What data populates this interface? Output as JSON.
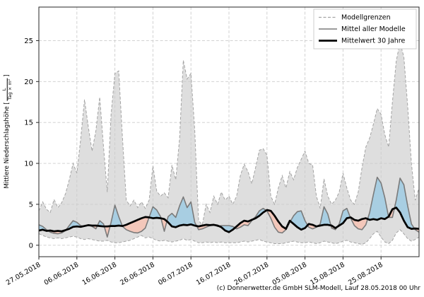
{
  "caption": "(c) Donnerwetter.de GmbH SLM-Modell, Lauf 28.05.2018 00 Uhr",
  "y_axis_label": {
    "prefix": "Mittlere Niederschlagshöhe [",
    "fraction_numerator": "L",
    "fraction_denominator": "Tag × m²",
    "suffix": "]"
  },
  "legend": {
    "position": "upper right",
    "items": [
      {
        "label": "Modellgrenzen",
        "line": "dashed-gray"
      },
      {
        "label": "Mittel aller Modelle",
        "line": "solid-gray"
      },
      {
        "label": "Mittelwert 30 Jahre",
        "line": "thick-black"
      }
    ]
  },
  "colors": {
    "grid": "#cccccc",
    "spine": "#262626",
    "envelope_fill": "#dedede",
    "envelope_edge": "#a3a3a3",
    "model_mean_line": "#7a7a7a",
    "mean_30y_line": "#000000",
    "fill_above": "#a8cee2",
    "fill_below": "#f3c7ba",
    "legend_border": "#cccccc"
  },
  "chart_data": {
    "type": "line",
    "title": "",
    "xlabel": "",
    "ylabel": "Mittlere Niederschlagshöhe [L/(Tag × m²)]",
    "grid": true,
    "legend_position": "upper right",
    "x_unit": "days since 27.05.2018 (daily values)",
    "start_date": "27.05.2018",
    "end_date": "04.09.2018",
    "xlim_days": [
      0,
      100
    ],
    "ylim": [
      -1.4,
      29.1
    ],
    "y_ticks": [
      0,
      5,
      10,
      15,
      20,
      25
    ],
    "x_tick_days": [
      0,
      10,
      20,
      30,
      40,
      50,
      60,
      70,
      80,
      90
    ],
    "x_tick_labels": [
      "27.05.2018",
      "06.06.2018",
      "16.06.2018",
      "26.06.2018",
      "06.07.2018",
      "16.07.2018",
      "26.07.2018",
      "05.08.2018",
      "15.08.2018",
      "25.08.2018"
    ],
    "series": [
      {
        "name": "Modellgrenzen (oberer Rand)",
        "role": "model_max",
        "style": "dashed-gray",
        "values": [
          4.2,
          5.3,
          4.4,
          4.0,
          5.6,
          4.6,
          5.2,
          6.3,
          8.0,
          10.0,
          8.8,
          13.0,
          17.8,
          14.5,
          11.5,
          14.0,
          18.1,
          12.0,
          6.5,
          16.0,
          21.0,
          21.3,
          13.0,
          5.5,
          4.8,
          5.5,
          4.6,
          5.3,
          4.5,
          5.5,
          9.7,
          6.6,
          6.0,
          6.4,
          5.8,
          9.8,
          8.0,
          13.0,
          22.6,
          20.3,
          21.0,
          14.0,
          3.0,
          2.5,
          5.0,
          4.0,
          6.0,
          5.0,
          6.5,
          5.5,
          6.0,
          5.0,
          6.0,
          8.5,
          9.9,
          9.0,
          7.5,
          9.5,
          11.6,
          11.8,
          11.0,
          6.0,
          5.0,
          7.0,
          8.5,
          7.0,
          9.0,
          8.0,
          9.5,
          10.5,
          11.5,
          10.0,
          9.8,
          6.0,
          4.5,
          8.1,
          6.0,
          5.0,
          5.5,
          6.5,
          8.8,
          7.0,
          5.5,
          5.0,
          6.5,
          9.5,
          12.0,
          13.1,
          14.8,
          16.7,
          16.0,
          13.5,
          12.0,
          17.5,
          22.5,
          24.8,
          23.0,
          17.0,
          10.0,
          5.5,
          7.0
        ]
      },
      {
        "name": "Modellgrenzen (unterer Rand)",
        "role": "model_min",
        "style": "dashed-gray",
        "values": [
          1.4,
          1.2,
          1.0,
          0.9,
          0.8,
          0.9,
          0.8,
          0.9,
          1.0,
          1.1,
          1.0,
          0.8,
          0.7,
          0.8,
          0.7,
          0.6,
          0.5,
          0.5,
          0.6,
          0.4,
          0.3,
          0.3,
          0.4,
          0.5,
          0.6,
          0.8,
          1.0,
          1.2,
          0.9,
          1.0,
          0.8,
          0.6,
          0.5,
          0.6,
          0.5,
          0.4,
          0.5,
          0.6,
          0.8,
          0.6,
          0.7,
          0.5,
          0.3,
          0.3,
          0.4,
          0.3,
          0.4,
          0.3,
          0.4,
          0.3,
          0.3,
          0.3,
          0.3,
          0.4,
          0.5,
          0.4,
          0.5,
          0.6,
          0.7,
          0.5,
          0.4,
          0.3,
          0.2,
          0.2,
          0.2,
          0.3,
          0.4,
          0.5,
          0.4,
          0.3,
          0.3,
          0.4,
          0.3,
          0.2,
          0.3,
          0.5,
          0.4,
          0.3,
          0.2,
          0.3,
          0.5,
          0.6,
          0.4,
          0.3,
          0.2,
          0.1,
          0.3,
          0.8,
          1.4,
          1.7,
          1.0,
          0.4,
          0.2,
          0.6,
          1.5,
          1.9,
          1.4,
          0.8,
          0.5,
          0.7,
          1.0
        ]
      },
      {
        "name": "Mittel aller Modelle",
        "role": "model_mean",
        "style": "solid-gray",
        "values": [
          2.5,
          2.3,
          1.9,
          1.6,
          1.45,
          1.4,
          1.5,
          1.8,
          2.4,
          3.0,
          2.8,
          2.4,
          2.3,
          2.5,
          2.3,
          2.0,
          3.0,
          2.6,
          1.0,
          2.8,
          4.9,
          3.5,
          2.3,
          1.9,
          1.7,
          1.55,
          1.5,
          1.7,
          2.1,
          3.4,
          4.7,
          4.3,
          3.5,
          1.7,
          3.5,
          3.9,
          3.4,
          4.8,
          5.9,
          4.6,
          5.3,
          2.8,
          1.9,
          2.0,
          2.2,
          2.4,
          2.5,
          2.3,
          2.4,
          2.4,
          2.4,
          2.3,
          2.0,
          2.2,
          2.5,
          2.4,
          3.0,
          3.5,
          4.2,
          4.5,
          4.2,
          3.3,
          2.2,
          1.6,
          1.5,
          1.9,
          2.8,
          3.6,
          4.1,
          4.2,
          3.0,
          2.2,
          2.0,
          2.2,
          2.6,
          4.7,
          3.8,
          2.1,
          1.9,
          2.6,
          4.2,
          4.5,
          3.3,
          2.4,
          2.0,
          1.9,
          2.5,
          4.0,
          6.2,
          8.3,
          7.6,
          5.8,
          3.4,
          3.4,
          5.5,
          8.2,
          7.4,
          4.8,
          2.6,
          1.9,
          1.6
        ]
      },
      {
        "name": "Mittelwert 30 Jahre",
        "role": "mean_30y",
        "style": "thick-black",
        "values": [
          1.8,
          1.9,
          1.75,
          1.8,
          1.7,
          1.75,
          1.7,
          1.85,
          2.0,
          2.25,
          2.3,
          2.25,
          2.35,
          2.45,
          2.4,
          2.4,
          2.35,
          2.3,
          2.3,
          2.35,
          2.35,
          2.4,
          2.35,
          2.5,
          2.7,
          2.9,
          3.1,
          3.3,
          3.45,
          3.4,
          3.3,
          3.35,
          3.3,
          3.2,
          2.8,
          2.3,
          2.2,
          2.4,
          2.5,
          2.45,
          2.55,
          2.4,
          2.3,
          2.4,
          2.5,
          2.45,
          2.5,
          2.4,
          2.2,
          1.8,
          1.6,
          1.9,
          2.3,
          2.7,
          3.0,
          2.9,
          3.1,
          3.3,
          3.6,
          4.0,
          4.3,
          4.2,
          3.6,
          2.9,
          2.3,
          2.0,
          3.0,
          2.6,
          2.2,
          1.9,
          2.1,
          2.6,
          2.5,
          2.3,
          2.4,
          2.5,
          2.5,
          2.4,
          2.1,
          2.4,
          2.7,
          3.3,
          3.4,
          3.1,
          3.0,
          3.2,
          3.3,
          3.1,
          3.2,
          3.1,
          3.3,
          3.2,
          3.5,
          4.4,
          4.6,
          4.0,
          3.0,
          2.2,
          2.0,
          2.05,
          2.0
        ]
      }
    ],
    "fills": {
      "between": [
        "model_mean",
        "mean_30y"
      ],
      "above_color_meaning": "Modellmittel über dem 30-jährigen Mittel (blau)",
      "below_color_meaning": "Modellmittel unter dem 30-jährigen Mittel (rot)"
    }
  }
}
